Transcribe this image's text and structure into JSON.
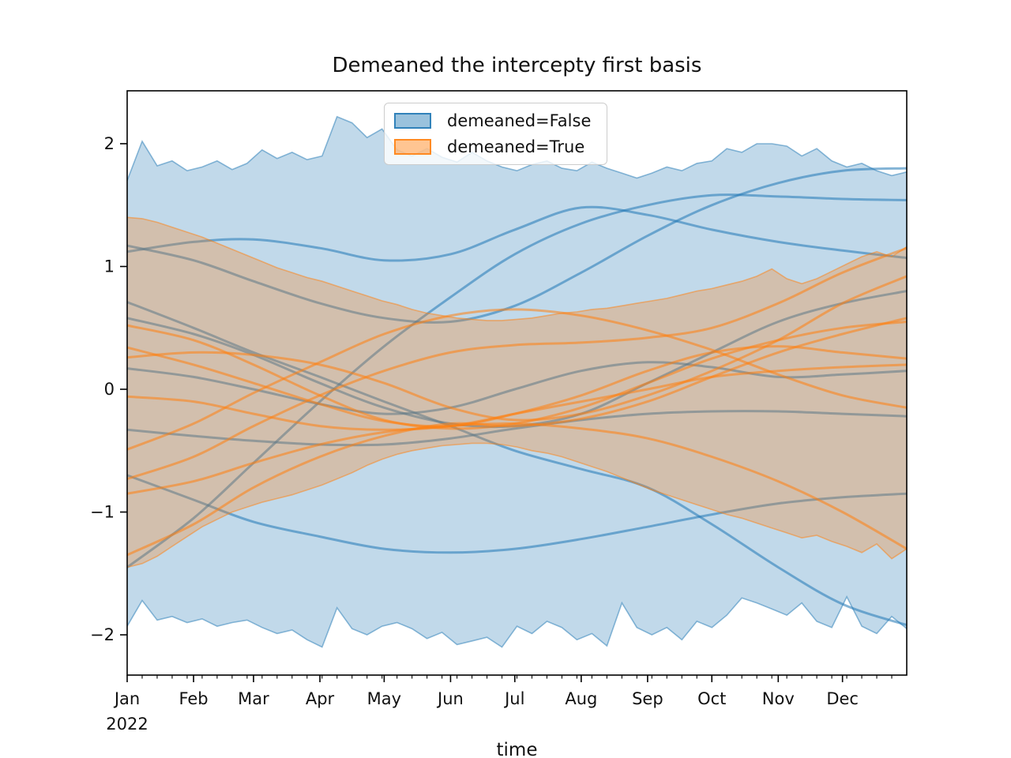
{
  "title": "Demeaned the intercepty first basis",
  "xlabel": "time",
  "legend": {
    "items": [
      {
        "label": "demeaned=False",
        "color": "#1f77b4"
      },
      {
        "label": "demeaned=True",
        "color": "#ff7f0e"
      }
    ]
  },
  "axes": {
    "y_ticks": [
      {
        "label": "2",
        "value": 2
      },
      {
        "label": "1",
        "value": 1
      },
      {
        "label": "0",
        "value": 0
      },
      {
        "label": "−1",
        "value": -1
      },
      {
        "label": "−2",
        "value": -2
      }
    ],
    "x_ticks": [
      {
        "label": "Jan",
        "day": 0
      },
      {
        "label": "Feb",
        "day": 31
      },
      {
        "label": "Mar",
        "day": 59
      },
      {
        "label": "Apr",
        "day": 90
      },
      {
        "label": "May",
        "day": 120
      },
      {
        "label": "Jun",
        "day": 151
      },
      {
        "label": "Jul",
        "day": 181
      },
      {
        "label": "Aug",
        "day": 212
      },
      {
        "label": "Sep",
        "day": 243
      },
      {
        "label": "Oct",
        "day": 273
      },
      {
        "label": "Nov",
        "day": 304
      },
      {
        "label": "Dec",
        "day": 334
      }
    ],
    "x_year_label": "2022",
    "x_minor_tick_interval_days": 7,
    "x_range_days": [
      0,
      364
    ],
    "y_range": [
      -2.33,
      2.43
    ]
  },
  "chart_data": {
    "type": "line",
    "title": "Demeaned the intercepty first basis",
    "xlabel": "time",
    "ylabel": "",
    "x_axis": {
      "unit": "date",
      "start": "Jan 2022",
      "end": "Dec 2022"
    },
    "x_tick_labels": [
      "Jan",
      "Feb",
      "Mar",
      "Apr",
      "May",
      "Jun",
      "Jul",
      "Aug",
      "Sep",
      "Oct",
      "Nov",
      "Dec"
    ],
    "ylim": [
      -2.33,
      2.43
    ],
    "grid": false,
    "legend_position": "upper center",
    "band_x_days": [
      0,
      7,
      14,
      21,
      28,
      35,
      42,
      49,
      56,
      63,
      70,
      77,
      84,
      91,
      98,
      105,
      112,
      119,
      126,
      133,
      140,
      147,
      154,
      161,
      168,
      175,
      182,
      189,
      196,
      203,
      210,
      217,
      224,
      231,
      238,
      245,
      252,
      259,
      266,
      273,
      280,
      287,
      294,
      301,
      308,
      315,
      322,
      329,
      336,
      343,
      350,
      357,
      364
    ],
    "series_x_days": [
      0,
      31,
      59,
      90,
      120,
      151,
      181,
      212,
      243,
      273,
      304,
      334,
      364
    ],
    "groups": [
      {
        "name": "demeaned=False",
        "color": "#1f77b4",
        "band": {
          "upper": [
            1.7,
            2.02,
            1.82,
            1.86,
            1.78,
            1.81,
            1.86,
            1.79,
            1.84,
            1.95,
            1.88,
            1.93,
            1.87,
            1.9,
            2.22,
            2.17,
            2.05,
            2.12,
            1.95,
            1.9,
            1.96,
            1.89,
            1.85,
            1.93,
            1.86,
            1.81,
            1.78,
            1.83,
            1.86,
            1.8,
            1.78,
            1.85,
            1.8,
            1.76,
            1.72,
            1.76,
            1.81,
            1.78,
            1.84,
            1.86,
            1.96,
            1.93,
            2.0,
            2.0,
            1.98,
            1.9,
            1.96,
            1.86,
            1.81,
            1.84,
            1.78,
            1.74,
            1.77
          ],
          "lower": [
            -1.93,
            -1.72,
            -1.88,
            -1.85,
            -1.9,
            -1.87,
            -1.93,
            -1.9,
            -1.88,
            -1.94,
            -1.99,
            -1.96,
            -2.04,
            -2.1,
            -1.78,
            -1.95,
            -2.0,
            -1.93,
            -1.9,
            -1.95,
            -2.03,
            -1.98,
            -2.08,
            -2.05,
            -2.02,
            -2.1,
            -1.93,
            -1.99,
            -1.89,
            -1.94,
            -2.04,
            -1.99,
            -2.09,
            -1.74,
            -1.94,
            -2.0,
            -1.94,
            -2.04,
            -1.89,
            -1.94,
            -1.84,
            -1.7,
            -1.74,
            -1.79,
            -1.84,
            -1.74,
            -1.89,
            -1.94,
            -1.69,
            -1.93,
            -1.99,
            -1.85,
            -1.95
          ]
        },
        "lines": [
          [
            1.17,
            1.05,
            0.88,
            0.7,
            0.58,
            0.55,
            0.68,
            0.95,
            1.25,
            1.5,
            1.68,
            1.78,
            1.8
          ],
          [
            1.12,
            1.2,
            1.22,
            1.15,
            1.05,
            1.1,
            1.3,
            1.48,
            1.42,
            1.3,
            1.2,
            1.13,
            1.07
          ],
          [
            -1.45,
            -1.05,
            -0.6,
            -0.1,
            0.35,
            0.75,
            1.1,
            1.35,
            1.5,
            1.58,
            1.57,
            1.55,
            1.54
          ],
          [
            0.71,
            0.5,
            0.3,
            0.1,
            -0.1,
            -0.3,
            -0.5,
            -0.65,
            -0.8,
            -1.1,
            -1.45,
            -1.75,
            -1.92
          ],
          [
            0.58,
            0.45,
            0.28,
            0.05,
            -0.15,
            -0.28,
            -0.3,
            -0.2,
            0.05,
            0.3,
            0.55,
            0.7,
            0.8
          ],
          [
            0.17,
            0.1,
            0.0,
            -0.12,
            -0.2,
            -0.15,
            0.0,
            0.15,
            0.22,
            0.18,
            0.1,
            0.12,
            0.15
          ],
          [
            -0.33,
            -0.38,
            -0.42,
            -0.45,
            -0.45,
            -0.4,
            -0.32,
            -0.25,
            -0.2,
            -0.18,
            -0.18,
            -0.2,
            -0.22
          ],
          [
            -0.7,
            -0.9,
            -1.08,
            -1.2,
            -1.3,
            -1.33,
            -1.3,
            -1.22,
            -1.12,
            -1.02,
            -0.93,
            -0.88,
            -0.85
          ]
        ]
      },
      {
        "name": "demeaned=True",
        "color": "#ff7f0e",
        "band": {
          "upper": [
            1.4,
            1.39,
            1.36,
            1.32,
            1.28,
            1.24,
            1.19,
            1.14,
            1.09,
            1.04,
            0.99,
            0.95,
            0.91,
            0.88,
            0.84,
            0.8,
            0.76,
            0.72,
            0.69,
            0.65,
            0.62,
            0.6,
            0.58,
            0.57,
            0.56,
            0.56,
            0.57,
            0.58,
            0.6,
            0.62,
            0.63,
            0.65,
            0.66,
            0.68,
            0.7,
            0.72,
            0.74,
            0.77,
            0.8,
            0.82,
            0.85,
            0.88,
            0.92,
            0.98,
            0.9,
            0.86,
            0.9,
            0.96,
            1.02,
            1.08,
            1.12,
            1.08,
            1.16
          ],
          "lower": [
            -1.45,
            -1.42,
            -1.36,
            -1.28,
            -1.2,
            -1.12,
            -1.06,
            -1.0,
            -0.96,
            -0.92,
            -0.89,
            -0.86,
            -0.82,
            -0.78,
            -0.73,
            -0.68,
            -0.62,
            -0.57,
            -0.53,
            -0.5,
            -0.48,
            -0.46,
            -0.45,
            -0.44,
            -0.44,
            -0.45,
            -0.47,
            -0.5,
            -0.52,
            -0.55,
            -0.59,
            -0.63,
            -0.67,
            -0.72,
            -0.77,
            -0.82,
            -0.86,
            -0.9,
            -0.94,
            -0.98,
            -1.02,
            -1.05,
            -1.09,
            -1.13,
            -1.17,
            -1.21,
            -1.19,
            -1.24,
            -1.28,
            -1.33,
            -1.26,
            -1.38,
            -1.3
          ]
        },
        "lines": [
          [
            0.52,
            0.4,
            0.2,
            -0.05,
            -0.25,
            -0.32,
            -0.28,
            -0.15,
            0.05,
            0.25,
            0.4,
            0.5,
            0.55
          ],
          [
            0.34,
            0.2,
            0.05,
            -0.12,
            -0.26,
            -0.3,
            -0.2,
            -0.05,
            0.15,
            0.3,
            0.35,
            0.3,
            0.25
          ],
          [
            0.26,
            0.3,
            0.28,
            0.2,
            0.05,
            -0.15,
            -0.25,
            -0.2,
            -0.05,
            0.15,
            0.4,
            0.7,
            0.92
          ],
          [
            -0.06,
            -0.1,
            -0.2,
            -0.3,
            -0.33,
            -0.3,
            -0.2,
            -0.1,
            0.0,
            0.1,
            0.15,
            0.18,
            0.2
          ],
          [
            -0.49,
            -0.28,
            -0.03,
            0.22,
            0.45,
            0.6,
            0.65,
            0.6,
            0.48,
            0.32,
            0.12,
            -0.05,
            -0.15
          ],
          [
            -0.73,
            -0.55,
            -0.3,
            -0.05,
            0.15,
            0.3,
            0.36,
            0.38,
            0.42,
            0.5,
            0.7,
            0.95,
            1.15
          ],
          [
            -0.85,
            -0.75,
            -0.6,
            -0.45,
            -0.35,
            -0.3,
            -0.28,
            -0.32,
            -0.4,
            -0.55,
            -0.75,
            -1.0,
            -1.3
          ],
          [
            -1.35,
            -1.1,
            -0.8,
            -0.55,
            -0.38,
            -0.28,
            -0.3,
            -0.24,
            -0.1,
            0.1,
            0.3,
            0.45,
            0.58
          ]
        ]
      }
    ],
    "style": {
      "band_fill_alpha": 0.28,
      "band_edge_alpha": 0.5,
      "line_alpha": 0.55,
      "line_width": 3
    }
  }
}
